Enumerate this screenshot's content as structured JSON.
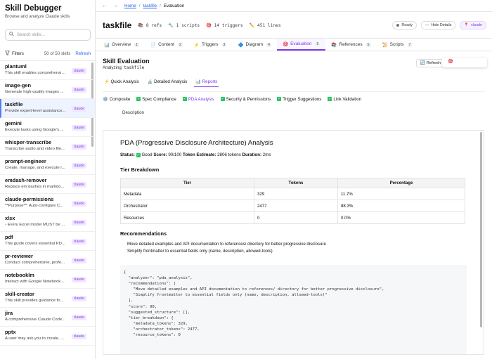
{
  "app": {
    "title": "Skill Debugger",
    "subtitle": "Browse and analyze Claude skills"
  },
  "search": {
    "placeholder": "Search skills..."
  },
  "filters": {
    "label": "Filters",
    "count": "50 of 50 skills",
    "refresh": "Refresh"
  },
  "skills": [
    {
      "name": "plantuml",
      "desc": "This skill enables comprehensive...",
      "tag": "claude"
    },
    {
      "name": "image-gen",
      "desc": "Generate high-quality images ...",
      "tag": "claude"
    },
    {
      "name": "taskfile",
      "desc": "Provide expert-level assistance...",
      "tag": "claude"
    },
    {
      "name": "gemini",
      "desc": "Execute tasks using Google's ...",
      "tag": "claude"
    },
    {
      "name": "whisper-transcribe",
      "desc": "Transcribe audio and video file...",
      "tag": "claude"
    },
    {
      "name": "prompt-engineer",
      "desc": "Create, manage, and execute r...",
      "tag": "claude"
    },
    {
      "name": "emdash-remover",
      "desc": "Replace em dashes in markdo...",
      "tag": "claude"
    },
    {
      "name": "claude-permissions",
      "desc": "**Purpose**: Auto-configure C...",
      "tag": "claude"
    },
    {
      "name": "xlsx",
      "desc": "- Every Excel model MUST be ...",
      "tag": "claude"
    },
    {
      "name": "pdf",
      "desc": "This guide covers essential PD...",
      "tag": "claude"
    },
    {
      "name": "pr-reviewer",
      "desc": "Conduct comprehensive, profe...",
      "tag": "claude"
    },
    {
      "name": "notebooklm",
      "desc": "Interact with Google Notebook...",
      "tag": "claude"
    },
    {
      "name": "skill-creator",
      "desc": "This skill provides guidance fo...",
      "tag": "claude"
    },
    {
      "name": "jira",
      "desc": "A comprehensive Claude Code...",
      "tag": "claude"
    },
    {
      "name": "pptx",
      "desc": "A user may ask you to create, ...",
      "tag": "claude"
    }
  ],
  "breadcrumb": {
    "back": "←",
    "forward": "→",
    "home": "Home",
    "skill": "taskfile",
    "current": "Evaluation"
  },
  "header": {
    "title": "taskfile",
    "refs": "8 refs",
    "scripts": "1 scripts",
    "triggers": "14 triggers",
    "lines": "451 lines",
    "ready": "Ready",
    "hide": "Hide Details",
    "tag": "claude"
  },
  "tabs": [
    {
      "label": "Overview",
      "num": "1"
    },
    {
      "label": "Content",
      "num": "2"
    },
    {
      "label": "Triggers",
      "num": "3"
    },
    {
      "label": "Diagram",
      "num": "4"
    },
    {
      "label": "Evaluation",
      "num": "5"
    },
    {
      "label": "References",
      "num": "6"
    },
    {
      "label": "Scripts",
      "num": "7"
    }
  ],
  "eval": {
    "title": "Skill Evaluation",
    "analyzing": "Analyzing:",
    "skill": "taskfile",
    "refresh": "Refresh",
    "modes": [
      "Quick Analysis",
      "Detailed Analysis",
      "Reports"
    ],
    "checks": [
      "Composite",
      "Spec Compliance",
      "PDA Analysis",
      "Security & Permissions",
      "Trigger Suggestions",
      "Link Validation"
    ],
    "desc_tab": "Description"
  },
  "report": {
    "title": "PDA (Progressive Disclosure Architecture) Analysis",
    "status_label": "Status:",
    "status_value": "Good",
    "score_label": "Score:",
    "score_value": "90/100",
    "token_label": "Token Estimate:",
    "token_value": "2806 tokens",
    "duration_label": "Duration:",
    "duration_value": "2ms",
    "tier_title": "Tier Breakdown",
    "columns": [
      "Tier",
      "Tokens",
      "Percentage"
    ],
    "rows": [
      [
        "Metadata",
        "329",
        "11.7%"
      ],
      [
        "Orchestrator",
        "2477",
        "88.3%"
      ],
      [
        "Resources",
        "0",
        "0.0%"
      ]
    ],
    "rec_title": "Recommendations",
    "recommendations": [
      "Move detailed examples and API documentation to references/ directory for better progressive disclosure",
      "Simplify frontmatter to essential fields only (name, description, allowed-tools)"
    ],
    "code_lines": [
      "{",
      "  \"analyzer\": \"pda_analysis\",",
      "  \"recommendations\": [",
      "    \"Move detailed examples and API documentation to references/ directory for better progressive disclosure\",",
      "    \"Simplify frontmatter to essential fields only (name, description, allowed-tools)\"",
      "  ],",
      "  \"score\": 90,",
      "  \"suggested_structure\": [],",
      "  \"tier_breakdown\": {",
      "    \"metadata_tokens\": 329,",
      "    \"orchestrator_tokens\": 2477,",
      "    \"resource_tokens\": 0"
    ]
  }
}
